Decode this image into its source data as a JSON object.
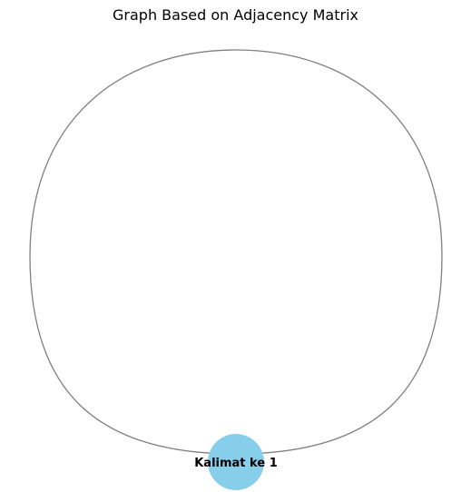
{
  "title": "Graph Based on Adjacency Matrix",
  "colors": {
    "node_fill": "#87ceeb",
    "edge_stroke": "#808080",
    "background": "#ffffff"
  },
  "graph": {
    "nodes": [
      {
        "id": "n1",
        "label": "Kalimat ke 1"
      }
    ],
    "edges": [
      {
        "from": "n1",
        "to": "n1",
        "type": "self-loop"
      }
    ]
  }
}
